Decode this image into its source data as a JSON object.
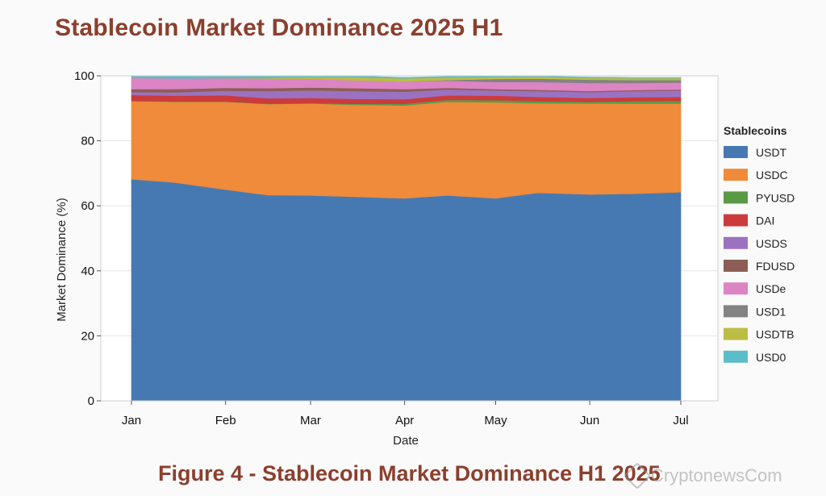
{
  "header": {
    "title": "Stablecoin Market Dominance 2025 H1"
  },
  "figure": {
    "caption": "Figure 4 - Stablecoin Market Dominance H1 2025",
    "watermark_text": "CryptonewsCom"
  },
  "colors": {
    "title": "#8b3f2e",
    "USDT": "#4679b2",
    "USDC": "#ef8b3a",
    "PYUSD": "#5a9a46",
    "DAI": "#cc3b3b",
    "USDS": "#9b72c1",
    "FDUSD": "#8c5e55",
    "USDe": "#dc84c4",
    "USD1": "#838383",
    "USDTB": "#bcbd44",
    "USD0": "#5bbdc8"
  },
  "chart_data": {
    "type": "area",
    "stacked": true,
    "title": "",
    "xlabel": "Date",
    "ylabel": "Market Dominance (%)",
    "x_ticks": [
      "Jan",
      "Feb",
      "Mar",
      "Apr",
      "May",
      "Jun",
      "Jul"
    ],
    "x": [
      "2025-01-01",
      "2025-01-15",
      "2025-02-01",
      "2025-02-15",
      "2025-03-01",
      "2025-03-15",
      "2025-04-01",
      "2025-04-15",
      "2025-05-01",
      "2025-05-15",
      "2025-06-01",
      "2025-06-15",
      "2025-07-01"
    ],
    "ylim": [
      0,
      100
    ],
    "y_ticks": [
      0,
      20,
      40,
      60,
      80,
      100
    ],
    "grid": true,
    "legend_title": "Stablecoins",
    "legend_position": "right",
    "series": [
      {
        "name": "USDT",
        "values": [
          68.2,
          67.2,
          65.0,
          63.3,
          63.2,
          62.8,
          62.3,
          63.2,
          62.3,
          64.0,
          63.5,
          63.7,
          64.2
        ]
      },
      {
        "name": "USDC",
        "values": [
          24.0,
          24.8,
          27.0,
          28.0,
          28.3,
          28.3,
          28.6,
          28.8,
          29.5,
          27.6,
          28.0,
          27.8,
          27.3
        ]
      },
      {
        "name": "PYUSD",
        "values": [
          0.1,
          0.1,
          0.1,
          0.1,
          0.1,
          0.3,
          0.5,
          0.6,
          0.7,
          0.6,
          0.5,
          0.7,
          0.8
        ]
      },
      {
        "name": "DAI",
        "values": [
          1.8,
          1.8,
          1.9,
          1.7,
          1.6,
          1.5,
          1.4,
          1.4,
          1.4,
          1.3,
          1.2,
          1.2,
          1.2
        ]
      },
      {
        "name": "USDS",
        "values": [
          0.9,
          1.0,
          1.4,
          2.2,
          2.3,
          2.4,
          2.3,
          1.8,
          1.6,
          1.8,
          1.8,
          1.9,
          2.0
        ]
      },
      {
        "name": "FDUSD",
        "values": [
          0.9,
          1.0,
          0.9,
          0.9,
          0.9,
          0.9,
          0.8,
          0.5,
          0.4,
          0.4,
          0.3,
          0.3,
          0.3
        ]
      },
      {
        "name": "USDe",
        "values": [
          3.5,
          3.3,
          3.0,
          2.9,
          2.6,
          2.4,
          2.3,
          2.2,
          2.2,
          2.4,
          2.5,
          2.2,
          2.1
        ]
      },
      {
        "name": "USD1",
        "values": [
          0.0,
          0.0,
          0.0,
          0.0,
          0.0,
          0.0,
          0.0,
          0.2,
          0.9,
          1.0,
          1.0,
          0.9,
          0.8
        ]
      },
      {
        "name": "USDTB",
        "values": [
          0.0,
          0.0,
          0.0,
          0.2,
          0.6,
          1.0,
          1.0,
          0.8,
          0.6,
          0.6,
          0.6,
          0.6,
          0.6
        ]
      },
      {
        "name": "USD0",
        "values": [
          0.6,
          0.8,
          0.7,
          0.7,
          0.4,
          0.4,
          0.3,
          0.3,
          0.2,
          0.2,
          0.2,
          0.2,
          0.2
        ]
      }
    ]
  }
}
